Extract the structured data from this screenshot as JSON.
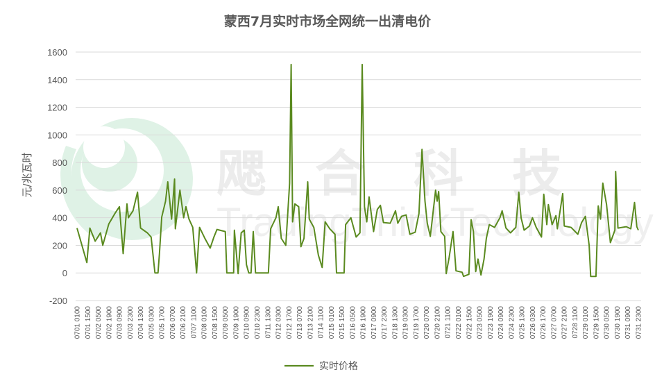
{
  "chart_data": {
    "type": "line",
    "title": "蒙西7月实时市场全网统一出清电价",
    "ylabel": "元/兆瓦时",
    "xlabel": "",
    "ylim": [
      -200,
      1600
    ],
    "yticks": [
      -200,
      0,
      200,
      400,
      600,
      800,
      1000,
      1200,
      1400,
      1600
    ],
    "grid": true,
    "legend_position": "bottom",
    "x_range": [
      "0701 0100",
      "0731 2300"
    ],
    "xtick_labels": [
      "0701 0100",
      "0701 1500",
      "0702 0500",
      "0702 1900",
      "0703 0900",
      "0703 2300",
      "0704 1300",
      "0705 0300",
      "0705 1700",
      "0706 0700",
      "0706 2100",
      "0707 1100",
      "0708 0100",
      "0708 1500",
      "0709 0500",
      "0709 1900",
      "0710 0900",
      "0710 2300",
      "0711 1300",
      "0712 0300",
      "0712 1700",
      "0713 0700",
      "0713 2100",
      "0714 1100",
      "0715 0100",
      "0715 1500",
      "0716 0500",
      "0716 1900",
      "0717 0900",
      "0717 2300",
      "0718 1300",
      "0719 0300",
      "0719 1700",
      "0720 0700",
      "0720 2100",
      "0721 1100",
      "0722 0100",
      "0722 1500",
      "0723 0500",
      "0723 1900",
      "0724 0900",
      "0724 2300",
      "0725 1300",
      "0726 0300",
      "0726 1700",
      "0727 0700",
      "0727 2100",
      "0728 1100",
      "0729 0100",
      "0729 1500",
      "0730 0500",
      "0730 1900",
      "0731 0900",
      "0731 2300"
    ],
    "series": [
      {
        "name": "实时价格",
        "color": "#5a8a1f",
        "points": [
          [
            "0701 0100",
            325
          ],
          [
            "0701 1400",
            75
          ],
          [
            "0701 1800",
            325
          ],
          [
            "0702 0100",
            230
          ],
          [
            "0702 0800",
            290
          ],
          [
            "0702 1100",
            200
          ],
          [
            "0702 1900",
            355
          ],
          [
            "0703 0300",
            430
          ],
          [
            "0703 0900",
            480
          ],
          [
            "0703 1400",
            140
          ],
          [
            "0703 1900",
            500
          ],
          [
            "0703 2100",
            400
          ],
          [
            "0704 0300",
            450
          ],
          [
            "0704 0900",
            585
          ],
          [
            "0704 1300",
            325
          ],
          [
            "0704 2200",
            290
          ],
          [
            "0705 0300",
            260
          ],
          [
            "0705 0800",
            0
          ],
          [
            "0705 1200",
            0
          ],
          [
            "0705 1400",
            140
          ],
          [
            "0705 1700",
            405
          ],
          [
            "0705 2200",
            520
          ],
          [
            "0706 0100",
            660
          ],
          [
            "0706 0600",
            390
          ],
          [
            "0706 1000",
            680
          ],
          [
            "0706 1100",
            320
          ],
          [
            "0706 1700",
            600
          ],
          [
            "0706 2200",
            400
          ],
          [
            "0707 0100",
            480
          ],
          [
            "0707 0500",
            390
          ],
          [
            "0707 1000",
            330
          ],
          [
            "0707 1500",
            0
          ],
          [
            "0707 1900",
            330
          ],
          [
            "0708 0200",
            250
          ],
          [
            "0708 0900",
            180
          ],
          [
            "0708 1400",
            260
          ],
          [
            "0708 1800",
            315
          ],
          [
            "0709 0500",
            300
          ],
          [
            "0709 0700",
            0
          ],
          [
            "0709 1600",
            0
          ],
          [
            "0709 1700",
            310
          ],
          [
            "0709 2200",
            -5
          ],
          [
            "0710 0200",
            290
          ],
          [
            "0710 0600",
            310
          ],
          [
            "0710 0900",
            60
          ],
          [
            "0710 1200",
            0
          ],
          [
            "0710 1500",
            0
          ],
          [
            "0710 1800",
            300
          ],
          [
            "0710 2100",
            0
          ],
          [
            "0711 1400",
            0
          ],
          [
            "0711 1700",
            320
          ],
          [
            "0712 0000",
            400
          ],
          [
            "0712 0300",
            480
          ],
          [
            "0712 0700",
            250
          ],
          [
            "0712 1300",
            200
          ],
          [
            "0712 1800",
            650
          ],
          [
            "0712 2000",
            1510
          ],
          [
            "0712 2200",
            370
          ],
          [
            "0713 0100",
            500
          ],
          [
            "0713 0600",
            480
          ],
          [
            "0713 0900",
            190
          ],
          [
            "0713 1300",
            250
          ],
          [
            "0713 1800",
            660
          ],
          [
            "0713 2000",
            390
          ],
          [
            "0714 0200",
            330
          ],
          [
            "0714 0800",
            130
          ],
          [
            "0714 1300",
            40
          ],
          [
            "0714 1700",
            370
          ],
          [
            "0714 2300",
            320
          ],
          [
            "0715 0600",
            280
          ],
          [
            "0715 0800",
            0
          ],
          [
            "0715 1800",
            0
          ],
          [
            "0715 2000",
            350
          ],
          [
            "0716 0300",
            400
          ],
          [
            "0716 1000",
            260
          ],
          [
            "0716 1500",
            290
          ],
          [
            "0716 1800",
            1510
          ],
          [
            "0716 2100",
            480
          ],
          [
            "0717 0000",
            370
          ],
          [
            "0717 0300",
            550
          ],
          [
            "0717 0900",
            300
          ],
          [
            "0717 1400",
            460
          ],
          [
            "0717 1800",
            490
          ],
          [
            "0717 2200",
            365
          ],
          [
            "0718 0700",
            360
          ],
          [
            "0718 1400",
            450
          ],
          [
            "0718 1700",
            360
          ],
          [
            "0718 2200",
            410
          ],
          [
            "0719 0400",
            420
          ],
          [
            "0719 0900",
            280
          ],
          [
            "0719 1600",
            295
          ],
          [
            "0719 2100",
            430
          ],
          [
            "0720 0100",
            895
          ],
          [
            "0720 0500",
            520
          ],
          [
            "0720 0800",
            360
          ],
          [
            "0720 1200",
            265
          ],
          [
            "0720 1900",
            600
          ],
          [
            "0720 2100",
            520
          ],
          [
            "0720 2300",
            590
          ],
          [
            "0721 0200",
            300
          ],
          [
            "0721 0700",
            265
          ],
          [
            "0721 0900",
            -5
          ],
          [
            "0721 1300",
            115
          ],
          [
            "0721 1800",
            300
          ],
          [
            "0721 2200",
            15
          ],
          [
            "0722 0600",
            5
          ],
          [
            "0722 0800",
            -25
          ],
          [
            "0722 1500",
            -10
          ],
          [
            "0722 1800",
            385
          ],
          [
            "0722 2100",
            300
          ],
          [
            "0723 0000",
            10
          ],
          [
            "0723 0300",
            100
          ],
          [
            "0723 0700",
            -15
          ],
          [
            "0723 1100",
            100
          ],
          [
            "0723 1400",
            250
          ],
          [
            "0723 1800",
            350
          ],
          [
            "0724 0100",
            330
          ],
          [
            "0724 0800",
            400
          ],
          [
            "0724 1100",
            450
          ],
          [
            "0724 1600",
            325
          ],
          [
            "0724 2200",
            290
          ],
          [
            "0725 0500",
            330
          ],
          [
            "0725 0900",
            585
          ],
          [
            "0725 1200",
            400
          ],
          [
            "0725 1600",
            310
          ],
          [
            "0725 2300",
            340
          ],
          [
            "0726 0300",
            400
          ],
          [
            "0726 0800",
            330
          ],
          [
            "0726 1500",
            260
          ],
          [
            "0726 1800",
            570
          ],
          [
            "0726 2200",
            350
          ],
          [
            "0727 0000",
            495
          ],
          [
            "0727 0500",
            350
          ],
          [
            "0727 1000",
            415
          ],
          [
            "0727 1200",
            320
          ],
          [
            "0727 1900",
            575
          ],
          [
            "0727 2100",
            340
          ],
          [
            "0728 0600",
            330
          ],
          [
            "0728 1500",
            280
          ],
          [
            "0728 2000",
            365
          ],
          [
            "0729 0100",
            410
          ],
          [
            "0729 0600",
            200
          ],
          [
            "0729 0800",
            -25
          ],
          [
            "0729 1500",
            -25
          ],
          [
            "0729 1800",
            485
          ],
          [
            "0729 2100",
            390
          ],
          [
            "0730 0000",
            650
          ],
          [
            "0730 0500",
            495
          ],
          [
            "0730 1000",
            220
          ],
          [
            "0730 1600",
            310
          ],
          [
            "0730 1700",
            735
          ],
          [
            "0730 2000",
            325
          ],
          [
            "0731 0700",
            335
          ],
          [
            "0731 1300",
            320
          ],
          [
            "0731 1800",
            510
          ],
          [
            "0731 2100",
            335
          ],
          [
            "0731 2300",
            310
          ]
        ]
      }
    ]
  },
  "watermark": {
    "cn": "飔合科技",
    "en": "TradingThinkTechnology"
  },
  "colors": {
    "line": "#5a8a1f",
    "grid": "#d9d9d9",
    "watermark_logo": "#dff2e6"
  }
}
